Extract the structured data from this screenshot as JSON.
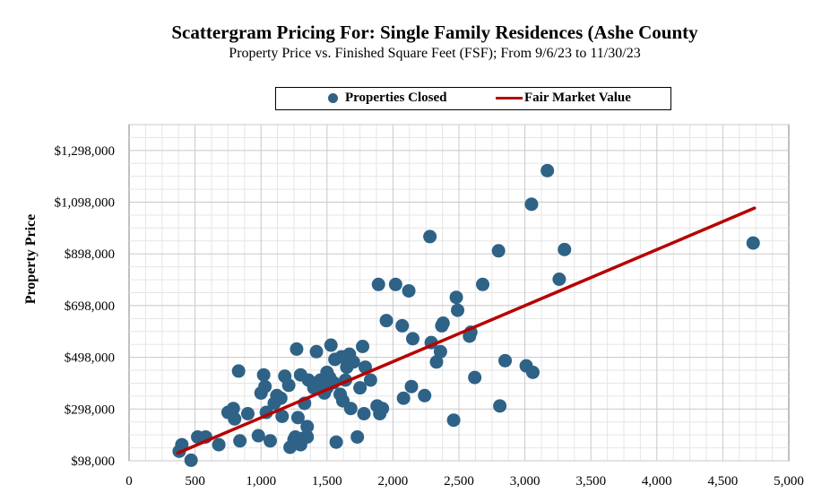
{
  "chart_data": {
    "type": "scatter",
    "title": "Scattergram Pricing For: Single Family Residences (Ashe County",
    "subtitle": "Property Price vs. Finished Square Feet (FSF); From 9/6/23 to 11/30/23",
    "xlabel": "",
    "ylabel": "Property Price",
    "xlim": [
      0,
      5000
    ],
    "ylim": [
      98000,
      1398000
    ],
    "x_ticks": [
      0,
      500,
      1000,
      1500,
      2000,
      2500,
      3000,
      3500,
      4000,
      4500,
      5000
    ],
    "x_tick_labels": [
      "0",
      "500",
      "1,000",
      "1,500",
      "2,000",
      "2,500",
      "3,000",
      "3,500",
      "4,000",
      "4,500",
      "5,000"
    ],
    "y_ticks": [
      98000,
      298000,
      498000,
      698000,
      898000,
      1098000,
      1298000
    ],
    "y_tick_labels": [
      "$98,000",
      "$298,000",
      "$498,000",
      "$698,000",
      "$898,000",
      "$1,098,000",
      "$1,298,000"
    ],
    "grid": true,
    "legend_position": "top",
    "series": [
      {
        "name": "Properties Closed",
        "kind": "scatter",
        "color": "#2e6286",
        "points": [
          [
            380,
            135000
          ],
          [
            400,
            160000
          ],
          [
            470,
            100000
          ],
          [
            520,
            190000
          ],
          [
            580,
            190000
          ],
          [
            680,
            160000
          ],
          [
            750,
            285000
          ],
          [
            790,
            300000
          ],
          [
            800,
            260000
          ],
          [
            830,
            445000
          ],
          [
            840,
            175000
          ],
          [
            900,
            280000
          ],
          [
            980,
            195000
          ],
          [
            1000,
            360000
          ],
          [
            1020,
            430000
          ],
          [
            1030,
            385000
          ],
          [
            1040,
            285000
          ],
          [
            1070,
            175000
          ],
          [
            1100,
            320000
          ],
          [
            1120,
            350000
          ],
          [
            1150,
            340000
          ],
          [
            1160,
            270000
          ],
          [
            1180,
            425000
          ],
          [
            1210,
            390000
          ],
          [
            1220,
            150000
          ],
          [
            1250,
            180000
          ],
          [
            1260,
            190000
          ],
          [
            1270,
            530000
          ],
          [
            1280,
            265000
          ],
          [
            1300,
            430000
          ],
          [
            1300,
            160000
          ],
          [
            1320,
            185000
          ],
          [
            1330,
            320000
          ],
          [
            1350,
            230000
          ],
          [
            1350,
            190000
          ],
          [
            1360,
            410000
          ],
          [
            1400,
            380000
          ],
          [
            1420,
            520000
          ],
          [
            1430,
            400000
          ],
          [
            1450,
            410000
          ],
          [
            1480,
            360000
          ],
          [
            1500,
            440000
          ],
          [
            1500,
            380000
          ],
          [
            1520,
            420000
          ],
          [
            1530,
            545000
          ],
          [
            1550,
            400000
          ],
          [
            1560,
            490000
          ],
          [
            1570,
            170000
          ],
          [
            1600,
            355000
          ],
          [
            1610,
            500000
          ],
          [
            1620,
            330000
          ],
          [
            1640,
            410000
          ],
          [
            1650,
            460000
          ],
          [
            1660,
            470000
          ],
          [
            1670,
            510000
          ],
          [
            1680,
            300000
          ],
          [
            1700,
            480000
          ],
          [
            1730,
            190000
          ],
          [
            1750,
            380000
          ],
          [
            1770,
            540000
          ],
          [
            1780,
            280000
          ],
          [
            1790,
            460000
          ],
          [
            1830,
            410000
          ],
          [
            1880,
            310000
          ],
          [
            1890,
            780000
          ],
          [
            1900,
            280000
          ],
          [
            1920,
            300000
          ],
          [
            1950,
            640000
          ],
          [
            2020,
            780000
          ],
          [
            2070,
            620000
          ],
          [
            2080,
            340000
          ],
          [
            2120,
            755000
          ],
          [
            2140,
            385000
          ],
          [
            2150,
            570000
          ],
          [
            2240,
            350000
          ],
          [
            2280,
            965000
          ],
          [
            2290,
            555000
          ],
          [
            2330,
            480000
          ],
          [
            2360,
            520000
          ],
          [
            2370,
            620000
          ],
          [
            2380,
            630000
          ],
          [
            2460,
            255000
          ],
          [
            2480,
            730000
          ],
          [
            2490,
            680000
          ],
          [
            2580,
            580000
          ],
          [
            2590,
            595000
          ],
          [
            2620,
            420000
          ],
          [
            2680,
            780000
          ],
          [
            2800,
            910000
          ],
          [
            2810,
            310000
          ],
          [
            2850,
            485000
          ],
          [
            3010,
            465000
          ],
          [
            3050,
            1090000
          ],
          [
            3060,
            440000
          ],
          [
            3170,
            1220000
          ],
          [
            3260,
            800000
          ],
          [
            3300,
            915000
          ],
          [
            4730,
            940000
          ]
        ]
      },
      {
        "name": "Fair Market Value",
        "kind": "line",
        "color": "#b80000",
        "points": [
          [
            370,
            128000
          ],
          [
            4740,
            1075000
          ]
        ]
      }
    ]
  },
  "legend": {
    "points_label": "Properties Closed",
    "line_label": "Fair Market Value"
  },
  "colors": {
    "points": "#2e6286",
    "trend_line": "#b80000",
    "grid": "#c8c8c8"
  }
}
